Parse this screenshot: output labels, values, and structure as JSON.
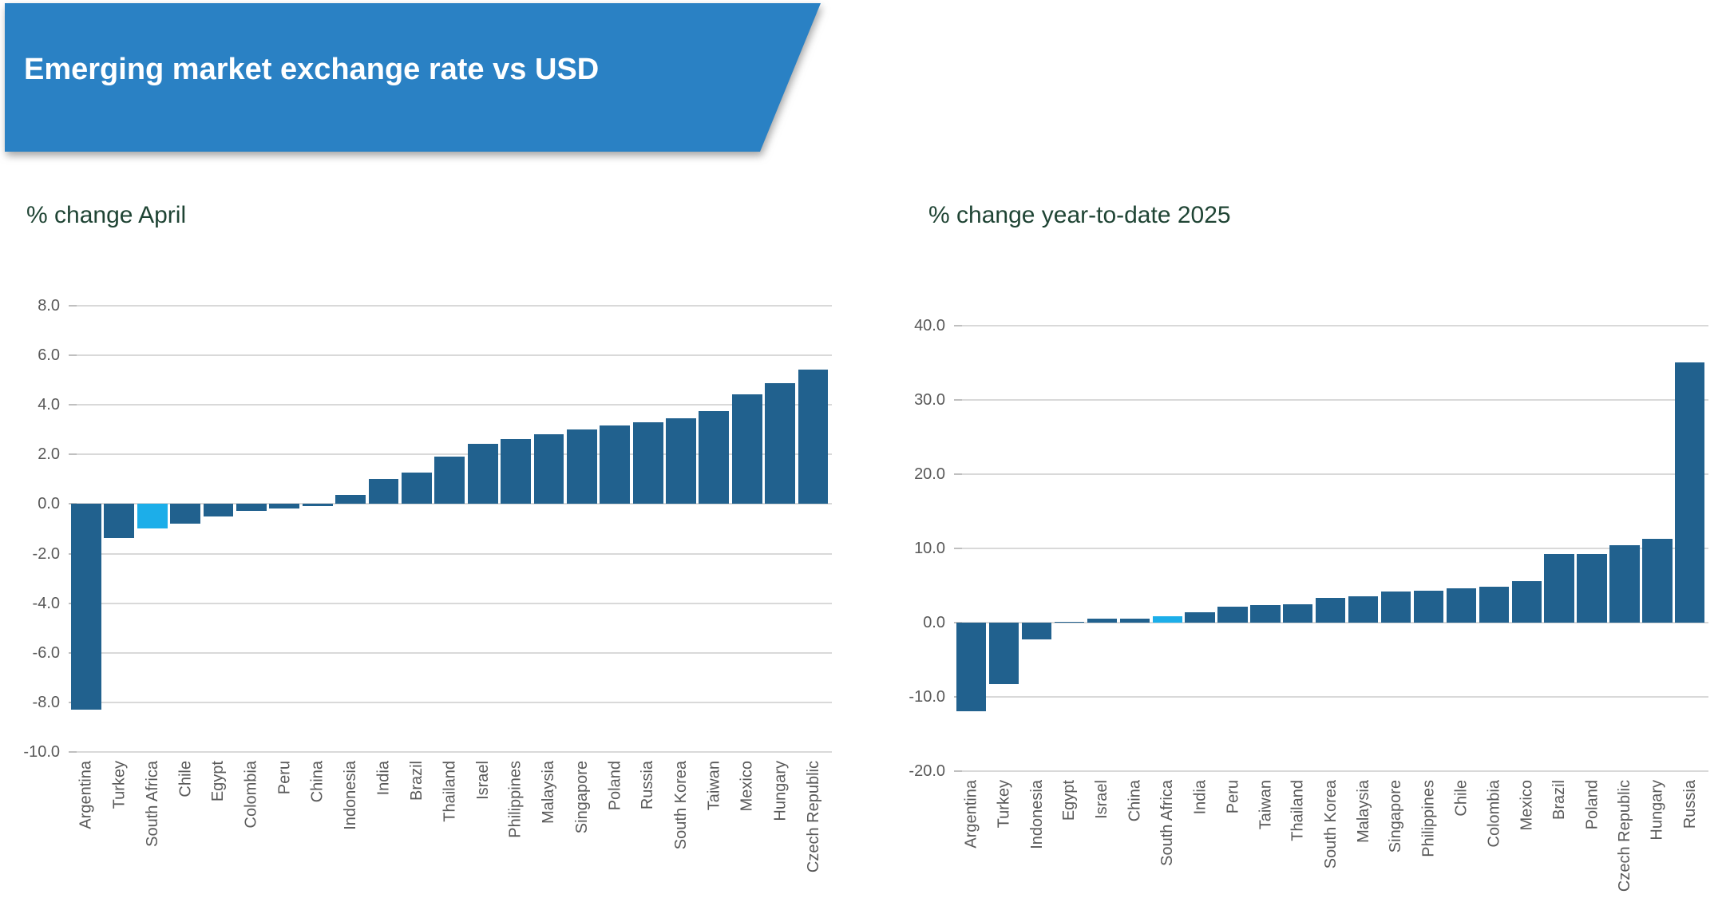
{
  "header": {
    "title": "Emerging market exchange rate vs USD"
  },
  "colors": {
    "banner_blue": "#2a81c4",
    "bar_blue": "#21618e",
    "highlight_cyan": "#1caee9",
    "title_green": "#1f4434",
    "axis_text_gray": "#595959",
    "gridline_gray": "#d9d9d9"
  },
  "chart_data": [
    {
      "type": "bar",
      "title": "% change April",
      "xlabel": "",
      "ylabel": "",
      "ylim": [
        -10,
        8
      ],
      "grid": true,
      "legend": "none",
      "highlight_category": "South Africa",
      "ytick_labels": [
        "8.0",
        "6.0",
        "4.0",
        "2.0",
        "0.0",
        "-2.0",
        "-4.0",
        "-6.0",
        "-8.0",
        "-10.0"
      ],
      "categories": [
        "Argentina",
        "Turkey",
        "South Africa",
        "Chile",
        "Egypt",
        "Colombia",
        "Peru",
        "China",
        "Indonesia",
        "India",
        "Brazil",
        "Thailand",
        "Israel",
        "Philippines",
        "Malaysia",
        "Singapore",
        "Poland",
        "Russia",
        "South Korea",
        "Taiwan",
        "Mexico",
        "Hungary",
        "Czech Republic"
      ],
      "values": [
        -8.3,
        -1.4,
        -1.0,
        -0.8,
        -0.5,
        -0.3,
        -0.2,
        -0.1,
        0.35,
        1.0,
        1.25,
        1.9,
        2.4,
        2.6,
        2.8,
        3.0,
        3.15,
        3.3,
        3.45,
        3.75,
        4.4,
        4.85,
        5.4
      ]
    },
    {
      "type": "bar",
      "title": "% change year-to-date 2025",
      "xlabel": "",
      "ylabel": "",
      "ylim": [
        -20,
        40
      ],
      "grid": true,
      "legend": "none",
      "highlight_category": "South Africa",
      "ytick_labels": [
        "40.0",
        "30.0",
        "20.0",
        "10.0",
        "0.0",
        "-10.0",
        "-20.0"
      ],
      "categories": [
        "Argentina",
        "Turkey",
        "Indonesia",
        "Egypt",
        "Israel",
        "China",
        "South Africa",
        "India",
        "Peru",
        "Taiwan",
        "Thailand",
        "South Korea",
        "Malaysia",
        "Singapore",
        "Philippines",
        "Chile",
        "Colombia",
        "Mexico",
        "Brazil",
        "Poland",
        "Czech Republic",
        "Hungary",
        "Russia"
      ],
      "values": [
        -11.9,
        -8.3,
        -2.3,
        0.1,
        0.5,
        0.5,
        0.9,
        1.4,
        2.2,
        2.4,
        2.5,
        3.3,
        3.6,
        4.2,
        4.3,
        4.6,
        4.8,
        5.6,
        9.2,
        9.3,
        10.4,
        11.3,
        35.0
      ]
    }
  ]
}
